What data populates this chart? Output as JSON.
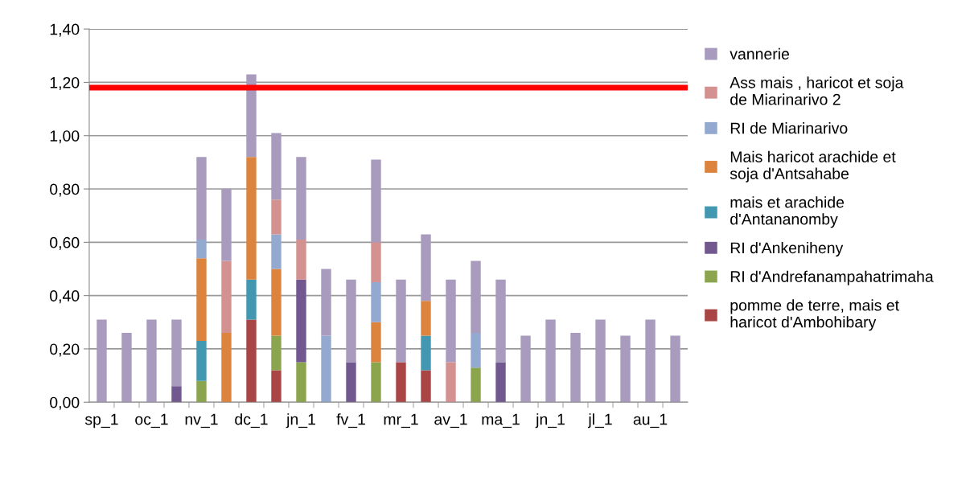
{
  "chart_data": {
    "type": "bar",
    "stacked": true,
    "categories": [
      "sp_1",
      null,
      "oc_1",
      null,
      "nv_1",
      null,
      "dc_1",
      null,
      "jn_1",
      null,
      "fv_1",
      null,
      "mr_1",
      null,
      "av_1",
      null,
      "ma_1",
      null,
      "jn_1",
      null,
      "jl_1",
      null,
      "au_1",
      null
    ],
    "series": [
      {
        "name": "pomme de terre, mais et haricot d'Ambohibary",
        "color": "#a94645",
        "values": [
          0,
          0,
          0,
          0,
          0,
          0,
          0.31,
          0.12,
          0,
          0,
          0,
          0,
          0.15,
          0.12,
          0,
          0,
          0,
          0,
          0,
          0,
          0,
          0,
          0,
          0
        ]
      },
      {
        "name": "RI d'Andrefanampahatrimaha",
        "color": "#8ba54e",
        "values": [
          0,
          0,
          0,
          0,
          0.08,
          0,
          0,
          0.13,
          0.15,
          0,
          0,
          0.15,
          0,
          0,
          0,
          0.13,
          0,
          0,
          0,
          0,
          0,
          0,
          0,
          0
        ]
      },
      {
        "name": "RI d'Ankeniheny",
        "color": "#71588f",
        "values": [
          0,
          0,
          0,
          0.06,
          0,
          0,
          0,
          0,
          0.31,
          0,
          0.15,
          0,
          0,
          0,
          0,
          0,
          0.15,
          0,
          0,
          0,
          0,
          0,
          0,
          0
        ]
      },
      {
        "name": "mais et arachide d'Antananomby",
        "color": "#4298b0",
        "values": [
          0,
          0,
          0,
          0,
          0.15,
          0,
          0.15,
          0,
          0,
          0,
          0,
          0,
          0,
          0.13,
          0,
          0,
          0,
          0,
          0,
          0,
          0,
          0,
          0,
          0
        ]
      },
      {
        "name": "Mais haricot arachide et soja d'Antsahabe",
        "color": "#dc843e",
        "values": [
          0,
          0,
          0,
          0,
          0.31,
          0.26,
          0.46,
          0.25,
          0,
          0,
          0,
          0.15,
          0,
          0.13,
          0,
          0,
          0,
          0,
          0,
          0,
          0,
          0,
          0,
          0
        ]
      },
      {
        "name": "RI de Miarinarivo",
        "color": "#94a9cf",
        "values": [
          0,
          0,
          0,
          0,
          0.07,
          0,
          0,
          0.13,
          0,
          0.25,
          0,
          0.15,
          0,
          0,
          0,
          0.13,
          0,
          0,
          0,
          0,
          0,
          0,
          0,
          0
        ]
      },
      {
        "name": "Ass mais , haricot et soja de Miarinarivo 2",
        "color": "#d39290",
        "values": [
          0,
          0,
          0,
          0,
          0,
          0.27,
          0,
          0.13,
          0.15,
          0,
          0,
          0.15,
          0,
          0,
          0.15,
          0,
          0,
          0,
          0,
          0,
          0,
          0,
          0,
          0
        ]
      },
      {
        "name": "vannerie",
        "color": "#a99bbd",
        "values": [
          0.31,
          0.26,
          0.31,
          0.25,
          0.31,
          0.27,
          0.31,
          0.25,
          0.31,
          0.25,
          0.31,
          0.31,
          0.31,
          0.25,
          0.31,
          0.27,
          0.31,
          0.25,
          0.31,
          0.26,
          0.31,
          0.25,
          0.31,
          0.25
        ]
      }
    ],
    "ylim": [
      0,
      1.4
    ],
    "yticks": [
      {
        "value": 0,
        "label": "0,00"
      },
      {
        "value": 0.2,
        "label": "0,20"
      },
      {
        "value": 0.4,
        "label": "0,40"
      },
      {
        "value": 0.6,
        "label": "0,60"
      },
      {
        "value": 0.8,
        "label": "0,80"
      },
      {
        "value": 1.0,
        "label": "1,00"
      },
      {
        "value": 1.2,
        "label": "1,20"
      },
      {
        "value": 1.4,
        "label": "1,40"
      }
    ],
    "ref_lines": [
      {
        "axis": "y",
        "value": 1.18,
        "color": "#ff0000"
      }
    ],
    "grid": "y",
    "legend": "right"
  }
}
